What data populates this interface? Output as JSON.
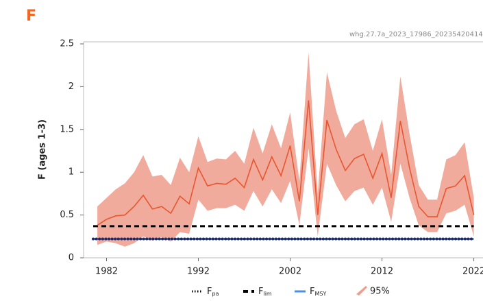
{
  "chart_data": {
    "type": "line",
    "panel_label": "F",
    "watermark": "whg.27.7a_2023_17986_20235420414",
    "ylabel": "F (ages 1-3)",
    "x": [
      1981,
      1982,
      1983,
      1984,
      1985,
      1986,
      1987,
      1988,
      1989,
      1990,
      1991,
      1992,
      1993,
      1994,
      1995,
      1996,
      1997,
      1998,
      1999,
      2000,
      2001,
      2002,
      2003,
      2004,
      2005,
      2006,
      2007,
      2008,
      2009,
      2010,
      2011,
      2012,
      2013,
      2014,
      2015,
      2016,
      2017,
      2018,
      2019,
      2020,
      2021,
      2022
    ],
    "series": [
      {
        "color": "#e8562f",
        "values": [
          0.38,
          0.45,
          0.49,
          0.5,
          0.6,
          0.73,
          0.57,
          0.6,
          0.52,
          0.72,
          0.63,
          1.05,
          0.84,
          0.87,
          0.86,
          0.93,
          0.82,
          1.15,
          0.91,
          1.18,
          0.96,
          1.31,
          0.66,
          1.84,
          0.5,
          1.61,
          1.27,
          1.02,
          1.16,
          1.21,
          0.93,
          1.22,
          0.7,
          1.6,
          1.05,
          0.6,
          0.48,
          0.48,
          0.81,
          0.84,
          0.96,
          0.5
        ]
      }
    ],
    "band": {
      "name": "95%",
      "color": "#ee9c8c",
      "upper": [
        0.6,
        0.7,
        0.8,
        0.87,
        1.0,
        1.2,
        0.95,
        0.97,
        0.85,
        1.17,
        1.0,
        1.42,
        1.12,
        1.16,
        1.15,
        1.25,
        1.1,
        1.52,
        1.22,
        1.56,
        1.28,
        1.7,
        0.9,
        2.4,
        0.75,
        2.17,
        1.72,
        1.4,
        1.56,
        1.62,
        1.25,
        1.62,
        0.97,
        2.12,
        1.45,
        0.85,
        0.68,
        0.68,
        1.15,
        1.2,
        1.35,
        0.7
      ],
      "lower": [
        0.15,
        0.19,
        0.17,
        0.13,
        0.17,
        0.25,
        0.2,
        0.24,
        0.19,
        0.3,
        0.28,
        0.68,
        0.55,
        0.58,
        0.58,
        0.62,
        0.55,
        0.78,
        0.6,
        0.8,
        0.64,
        0.9,
        0.38,
        1.28,
        0.25,
        1.1,
        0.85,
        0.66,
        0.78,
        0.82,
        0.62,
        0.82,
        0.42,
        1.1,
        0.7,
        0.38,
        0.3,
        0.3,
        0.52,
        0.55,
        0.62,
        0.25
      ]
    },
    "reference_lines": [
      {
        "name": "F",
        "subscript": "lim",
        "value": 0.37,
        "color": "#000000",
        "style": "dashed"
      },
      {
        "name": "F",
        "subscript": "MSY",
        "value": 0.22,
        "color": "#4a90e2",
        "style": "solid"
      },
      {
        "name": "F",
        "subscript": "pa",
        "value": 0.22,
        "color": "#1a2a6c",
        "style": "dotted"
      }
    ],
    "legend_order": [
      2,
      0,
      1
    ],
    "xlim": [
      1979.5,
      2023
    ],
    "xticks": [
      1982,
      1992,
      2002,
      2012,
      2022
    ],
    "ylim": [
      0,
      2.5
    ],
    "yticks": [
      0,
      0.5,
      1,
      1.5,
      2,
      2.5
    ]
  }
}
